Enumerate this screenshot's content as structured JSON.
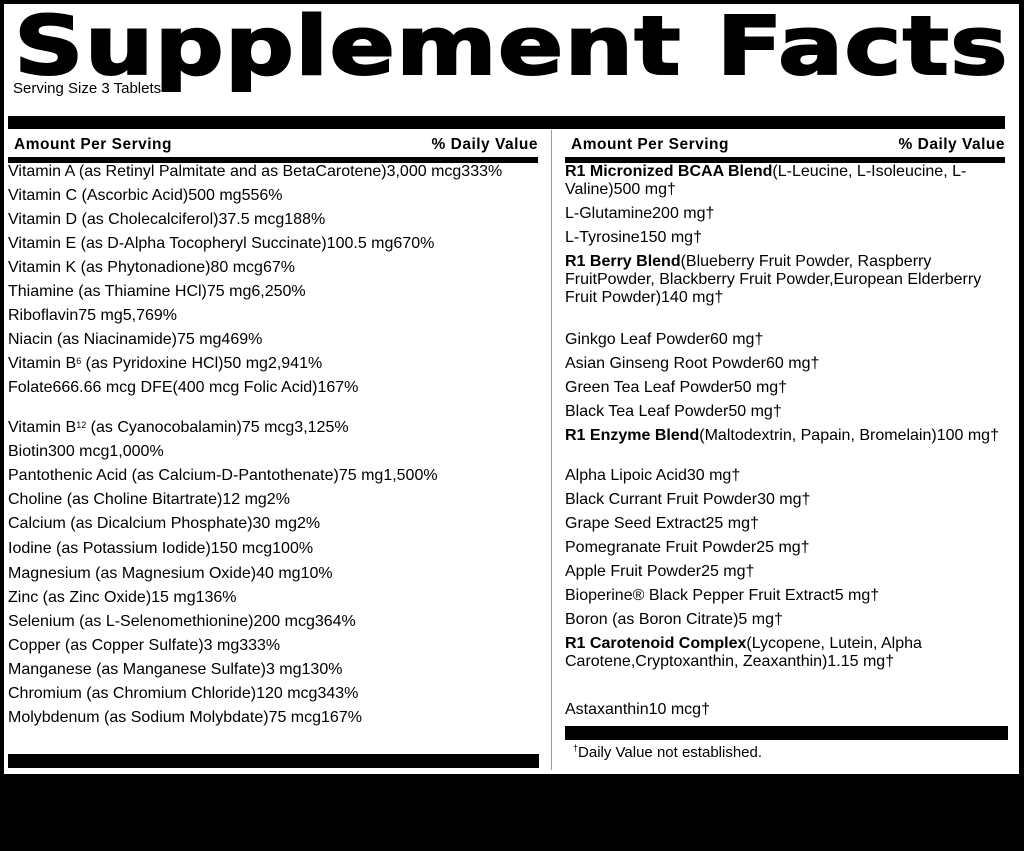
{
  "title": "Supplement Facts",
  "serving_size": "Serving Size 3 Tablets",
  "left": {
    "header_amount": "Amount Per Serving",
    "header_dv": "% Daily Value",
    "rows": [
      {
        "name": "Vitamin A (as Retinyl Palmitate and as Beta",
        "name2": "Carotene)",
        "amount": "3,000 mcg",
        "dv": "333%"
      },
      {
        "name": "Vitamin C (Ascorbic Acid)",
        "amount": "500 mg",
        "dv": "556%"
      },
      {
        "name": "Vitamin D (as Cholecalciferol)",
        "amount": "37.5 mcg",
        "dv": "188%"
      },
      {
        "name": "Vitamin E (as D-Alpha Tocopheryl Succinate)",
        "amount": "100.5 mg",
        "dv": "670%"
      },
      {
        "name": "Vitamin K (as Phytonadione)",
        "amount": "80 mcg",
        "dv": "67%"
      },
      {
        "name": "Thiamine (as Thiamine HCl)",
        "amount": "75 mg",
        "dv": "6,250%"
      },
      {
        "name": "Riboflavin",
        "amount": "75 mg",
        "dv": "5,769%"
      },
      {
        "name": "Niacin (as Niacinamide)",
        "amount": "75 mg",
        "dv": "469%"
      },
      {
        "name": "Vitamin B",
        "sub": "6",
        "name_rest": " (as Pyridoxine HCl)",
        "amount": "50 mg",
        "dv": "2,941%"
      },
      {
        "name": "Folate",
        "amount": "666.66 mcg DFE",
        "amount2": "(400 mcg Folic Acid)",
        "dv": "167%"
      },
      {
        "name": "Vitamin B",
        "sub": "12",
        "name_rest": " (as Cyanocobalamin)",
        "amount": "75 mcg",
        "dv": "3,125%"
      },
      {
        "name": "Biotin",
        "amount": "300 mcg",
        "dv": "1,000%"
      },
      {
        "name": "Pantothenic Acid (as Calcium-D-Pantothenate)",
        "amount": "75 mg",
        "dv": "1,500%"
      },
      {
        "name": "Choline (as Choline Bitartrate)",
        "amount": "12 mg",
        "dv": "2%"
      },
      {
        "name": "Calcium (as Dicalcium Phosphate)",
        "amount": "30 mg",
        "dv": "2%"
      },
      {
        "name": "Iodine (as Potassium Iodide)",
        "amount": "150 mcg",
        "dv": "100%"
      },
      {
        "name": "Magnesium (as Magnesium Oxide)",
        "amount": "40 mg",
        "dv": "10%"
      },
      {
        "name": "Zinc (as Zinc Oxide)",
        "amount": "15 mg",
        "dv": "136%"
      },
      {
        "name": "Selenium (as L-Selenomethionine)",
        "amount": "200 mcg",
        "dv": "364%"
      },
      {
        "name": "Copper (as Copper Sulfate)",
        "amount": "3 mg",
        "dv": "333%"
      },
      {
        "name": "Manganese (as Manganese Sulfate)",
        "amount": "3 mg",
        "dv": "130%"
      },
      {
        "name": "Chromium (as Chromium Chloride)",
        "amount": "120 mcg",
        "dv": "343%"
      },
      {
        "name": "Molybdenum (as Sodium Molybdate)",
        "amount": "75 mcg",
        "dv": "167%"
      }
    ]
  },
  "right": {
    "header_amount": "Amount Per Serving",
    "header_dv": "% Daily Value",
    "rows": [
      {
        "name": "R1 Micronized BCAA Blend",
        "bold": true,
        "detail": [
          "(L-Leucine, L-Isoleucine, L-Valine)"
        ],
        "amount": "500 mg",
        "dv": "†"
      },
      {
        "name": "L-Glutamine",
        "amount": "200 mg",
        "dv": "†"
      },
      {
        "name": "L-Tyrosine",
        "amount": "150 mg",
        "dv": "†"
      },
      {
        "name": "R1 Berry Blend",
        "bold": true,
        "detail": [
          "(Blueberry Fruit Powder, Raspberry Fruit",
          "Powder, Blackberry Fruit Powder,",
          "European Elderberry Fruit Powder)"
        ],
        "amount": "140 mg",
        "dv": "†"
      },
      {
        "name": "Ginkgo Leaf Powder",
        "amount": "60 mg",
        "dv": "†"
      },
      {
        "name": "Asian Ginseng Root Powder",
        "amount": "60 mg",
        "dv": "†"
      },
      {
        "name": "Green Tea Leaf Powder",
        "amount": "50 mg",
        "dv": "†"
      },
      {
        "name": "Black Tea Leaf Powder",
        "amount": "50 mg",
        "dv": "†"
      },
      {
        "name": "R1 Enzyme Blend",
        "bold": true,
        "detail": [
          "(Maltodextrin, Papain, Bromelain)"
        ],
        "amount": "100 mg",
        "dv": "†"
      },
      {
        "name": "Alpha Lipoic Acid",
        "amount": "30 mg",
        "dv": "†"
      },
      {
        "name": "Black Currant Fruit Powder",
        "amount": "30 mg",
        "dv": "†"
      },
      {
        "name": "Grape Seed Extract",
        "amount": "25 mg",
        "dv": "†"
      },
      {
        "name": "Pomegranate Fruit Powder",
        "amount": "25 mg",
        "dv": "†"
      },
      {
        "name": "Apple Fruit Powder",
        "amount": "25 mg",
        "dv": "†"
      },
      {
        "name": "Bioperine® Black Pepper Fruit Extract",
        "amount": "5 mg",
        "dv": "†"
      },
      {
        "name": "Boron (as Boron Citrate)",
        "amount": "5 mg",
        "dv": "†"
      },
      {
        "name": "R1 Carotenoid Complex",
        "bold": true,
        "detail": [
          "(Lycopene, Lutein, Alpha Carotene,",
          "Cryptoxanthin, Zeaxanthin)"
        ],
        "amount": "1.15 mg",
        "dv": "†"
      },
      {
        "name": "Astaxanthin",
        "amount": "10 mcg",
        "dv": "†"
      }
    ]
  },
  "footnote_mark": "†",
  "footnote": "Daily Value not established."
}
